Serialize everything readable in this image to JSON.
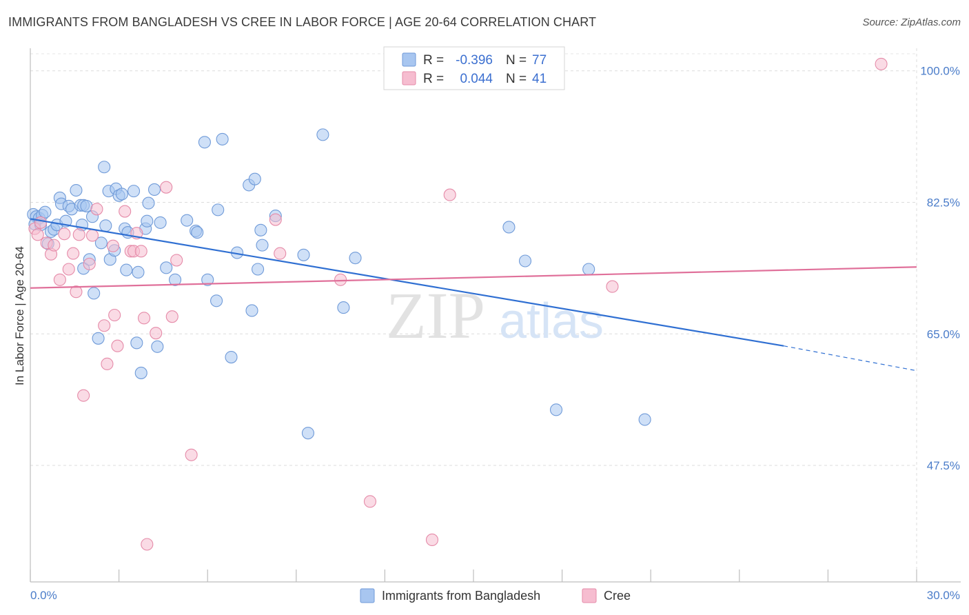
{
  "title": "IMMIGRANTS FROM BANGLADESH VS CREE IN LABOR FORCE | AGE 20-64 CORRELATION CHART",
  "source": "Source: ZipAtlas.com",
  "watermark": {
    "zip": "ZIP",
    "atlas": "atlas"
  },
  "legend_top": [
    {
      "r_label": "R =",
      "r_value": "-0.396",
      "n_label": "N =",
      "n_value": "77",
      "color": "#a8c6f0",
      "stroke": "#6f9ad8"
    },
    {
      "r_label": "R =",
      "r_value": "0.044",
      "n_label": "N =",
      "n_value": "41",
      "color": "#f6bdd0",
      "stroke": "#e58aa8"
    }
  ],
  "legend_bottom": [
    {
      "label": "Immigrants from Bangladesh",
      "color": "#a8c6f0",
      "stroke": "#6f9ad8"
    },
    {
      "label": "Cree",
      "color": "#f6bdd0",
      "stroke": "#e58aa8"
    }
  ],
  "chart_data": {
    "type": "scatter",
    "title": "IMMIGRANTS FROM BANGLADESH VS CREE IN LABOR FORCE | AGE 20-64 CORRELATION CHART",
    "xlabel": "",
    "ylabel": "In Labor Force | Age 20-64",
    "xlim": [
      0,
      30
    ],
    "ylim": [
      32,
      103
    ],
    "x_tick_labels": [
      "0.0%",
      "30.0%"
    ],
    "x_ticks": [
      0,
      3,
      6,
      9,
      12,
      15,
      18,
      21,
      24,
      27,
      30
    ],
    "y_ticks": [
      47.5,
      65.0,
      82.5,
      100.0
    ],
    "y_tick_labels": [
      "47.5%",
      "65.0%",
      "82.5%",
      "100.0%"
    ],
    "grid": true,
    "series": [
      {
        "name": "Immigrants from Bangladesh",
        "color": "#a8c6f0",
        "stroke": "#6f9ad8",
        "trend_color": "#2f6fd2",
        "trend": {
          "x0": 0.0,
          "y0": 80.3,
          "x1": 25.5,
          "y1": 63.4,
          "dash_to_x": 30.0,
          "dash_to_y": 60.1
        },
        "points": [
          [
            0.1,
            80.9
          ],
          [
            0.2,
            80.6
          ],
          [
            0.15,
            79.6
          ],
          [
            0.3,
            80.4
          ],
          [
            0.4,
            80.8
          ],
          [
            0.35,
            79.5
          ],
          [
            0.5,
            81.2
          ],
          [
            0.6,
            77.0
          ],
          [
            0.7,
            78.6
          ],
          [
            0.8,
            78.9
          ],
          [
            0.9,
            79.5
          ],
          [
            1.0,
            83.1
          ],
          [
            1.05,
            82.3
          ],
          [
            1.2,
            80.0
          ],
          [
            1.3,
            82.0
          ],
          [
            1.4,
            81.6
          ],
          [
            1.55,
            84.1
          ],
          [
            1.7,
            82.1
          ],
          [
            1.75,
            79.5
          ],
          [
            1.8,
            82.1
          ],
          [
            1.8,
            73.7
          ],
          [
            1.9,
            82.0
          ],
          [
            2.0,
            74.9
          ],
          [
            2.1,
            80.6
          ],
          [
            2.15,
            70.4
          ],
          [
            2.3,
            64.4
          ],
          [
            2.4,
            77.1
          ],
          [
            2.5,
            87.2
          ],
          [
            2.55,
            79.4
          ],
          [
            2.65,
            84.0
          ],
          [
            2.7,
            74.9
          ],
          [
            2.85,
            76.1
          ],
          [
            2.9,
            84.3
          ],
          [
            3.0,
            83.4
          ],
          [
            3.1,
            83.6
          ],
          [
            3.2,
            79.0
          ],
          [
            3.25,
            73.5
          ],
          [
            3.3,
            78.5
          ],
          [
            3.5,
            84.0
          ],
          [
            3.6,
            63.8
          ],
          [
            3.65,
            73.2
          ],
          [
            3.75,
            59.8
          ],
          [
            3.9,
            79.0
          ],
          [
            3.95,
            80.0
          ],
          [
            4.0,
            82.4
          ],
          [
            4.2,
            84.2
          ],
          [
            4.3,
            63.3
          ],
          [
            4.4,
            79.8
          ],
          [
            4.6,
            73.8
          ],
          [
            4.9,
            72.2
          ],
          [
            5.3,
            80.1
          ],
          [
            5.6,
            78.7
          ],
          [
            5.65,
            78.5
          ],
          [
            5.9,
            90.5
          ],
          [
            6.0,
            72.2
          ],
          [
            6.3,
            69.4
          ],
          [
            6.35,
            81.5
          ],
          [
            6.5,
            90.9
          ],
          [
            6.8,
            61.9
          ],
          [
            7.0,
            75.8
          ],
          [
            7.4,
            84.8
          ],
          [
            7.5,
            68.1
          ],
          [
            7.6,
            85.6
          ],
          [
            7.7,
            73.6
          ],
          [
            7.8,
            78.8
          ],
          [
            7.85,
            76.8
          ],
          [
            8.3,
            80.7
          ],
          [
            9.25,
            75.5
          ],
          [
            9.4,
            51.8
          ],
          [
            9.9,
            91.5
          ],
          [
            10.6,
            68.5
          ],
          [
            11.0,
            75.1
          ],
          [
            16.2,
            79.2
          ],
          [
            16.75,
            74.7
          ],
          [
            17.8,
            54.9
          ],
          [
            18.9,
            73.6
          ],
          [
            20.8,
            53.6
          ]
        ]
      },
      {
        "name": "Cree",
        "color": "#f6bdd0",
        "stroke": "#e58aa8",
        "trend_color": "#e0709a",
        "trend": {
          "x0": 0.0,
          "y0": 71.1,
          "x1": 30.0,
          "y1": 73.9
        },
        "points": [
          [
            0.15,
            79.0
          ],
          [
            0.25,
            78.2
          ],
          [
            0.35,
            79.8
          ],
          [
            0.55,
            77.1
          ],
          [
            0.7,
            75.6
          ],
          [
            0.8,
            76.8
          ],
          [
            1.0,
            72.2
          ],
          [
            1.15,
            78.3
          ],
          [
            1.3,
            73.6
          ],
          [
            1.45,
            75.7
          ],
          [
            1.55,
            70.6
          ],
          [
            1.65,
            78.2
          ],
          [
            1.8,
            56.8
          ],
          [
            2.0,
            74.3
          ],
          [
            2.1,
            78.1
          ],
          [
            2.25,
            81.6
          ],
          [
            2.5,
            66.1
          ],
          [
            2.6,
            61.0
          ],
          [
            2.8,
            76.7
          ],
          [
            2.85,
            67.5
          ],
          [
            2.95,
            63.4
          ],
          [
            3.2,
            81.3
          ],
          [
            3.4,
            76.0
          ],
          [
            3.5,
            76.0
          ],
          [
            3.6,
            78.4
          ],
          [
            3.75,
            76.0
          ],
          [
            3.85,
            67.1
          ],
          [
            3.95,
            37.0
          ],
          [
            4.25,
            65.1
          ],
          [
            4.6,
            84.5
          ],
          [
            4.8,
            67.3
          ],
          [
            4.95,
            74.8
          ],
          [
            5.45,
            48.9
          ],
          [
            8.3,
            80.2
          ],
          [
            8.45,
            75.7
          ],
          [
            10.5,
            72.2
          ],
          [
            11.5,
            42.7
          ],
          [
            13.6,
            37.6
          ],
          [
            14.2,
            83.5
          ],
          [
            19.7,
            71.3
          ],
          [
            28.8,
            100.9
          ]
        ]
      }
    ]
  }
}
